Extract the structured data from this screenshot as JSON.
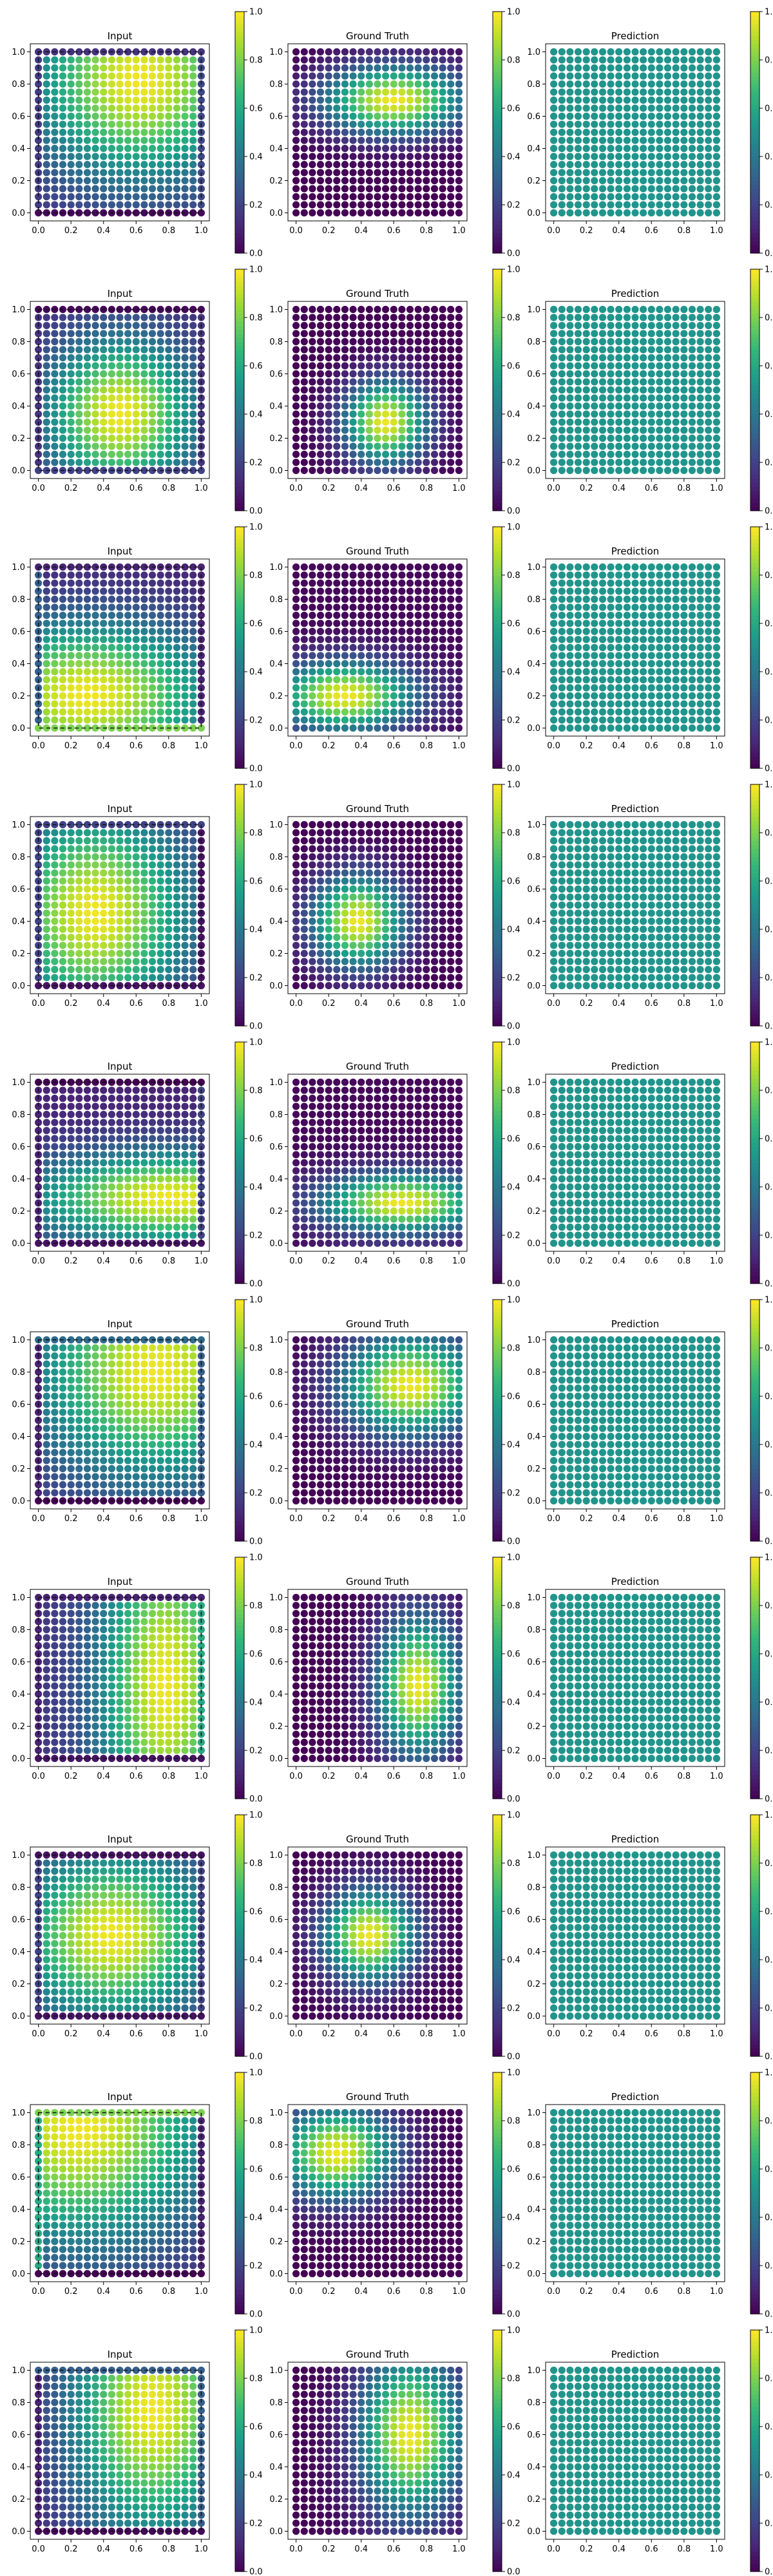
{
  "figure": {
    "panel_titles": [
      "Input",
      "Ground Truth",
      "Prediction"
    ]
  },
  "chart_data": [
    {
      "type": "heatmap",
      "row": 1,
      "panels": [
        {
          "title": "Input",
          "field": {
            "kind": "gauss",
            "cx": 0.62,
            "cy": 0.82,
            "sx": 0.45,
            "sy": 0.42,
            "lo": 0.12,
            "hi": 0.98,
            "edge": {
              "bottom": 0.02,
              "top": 0.15,
              "left": 0.18,
              "right": 0.22
            }
          }
        },
        {
          "title": "Ground Truth",
          "field": {
            "kind": "gauss",
            "cx": 0.6,
            "cy": 0.7,
            "sx": 0.3,
            "sy": 0.15,
            "lo": 0.0,
            "hi": 0.98
          }
        },
        {
          "title": "Prediction",
          "field": {
            "kind": "const",
            "value": 0.52
          }
        }
      ]
    },
    {
      "type": "heatmap",
      "row": 2,
      "panels": [
        {
          "title": "Input",
          "field": {
            "kind": "gauss",
            "cx": 0.5,
            "cy": 0.35,
            "sx": 0.32,
            "sy": 0.33,
            "lo": 0.1,
            "hi": 0.98,
            "edge": {
              "bottom": 0.2,
              "top": 0.02,
              "left": 0.15,
              "right": 0.15
            }
          }
        },
        {
          "title": "Ground Truth",
          "field": {
            "kind": "gauss",
            "cx": 0.55,
            "cy": 0.3,
            "sx": 0.18,
            "sy": 0.18,
            "lo": 0.0,
            "hi": 0.98
          }
        },
        {
          "title": "Prediction",
          "field": {
            "kind": "const",
            "value": 0.52
          }
        }
      ]
    },
    {
      "type": "heatmap",
      "row": 3,
      "panels": [
        {
          "title": "Input",
          "field": {
            "kind": "gauss",
            "cx": 0.3,
            "cy": 0.2,
            "sx": 0.55,
            "sy": 0.33,
            "lo": 0.08,
            "hi": 0.98,
            "edge": {
              "bottom": 0.8,
              "top": 0.1,
              "left": 0.3,
              "right": 0.1
            }
          }
        },
        {
          "title": "Ground Truth",
          "field": {
            "kind": "gauss",
            "cx": 0.3,
            "cy": 0.2,
            "sx": 0.3,
            "sy": 0.15,
            "lo": 0.02,
            "hi": 0.98
          }
        },
        {
          "title": "Prediction",
          "field": {
            "kind": "const",
            "value": 0.52
          }
        }
      ]
    },
    {
      "type": "heatmap",
      "row": 4,
      "panels": [
        {
          "title": "Input",
          "field": {
            "kind": "gauss",
            "cx": 0.35,
            "cy": 0.45,
            "sx": 0.4,
            "sy": 0.45,
            "lo": 0.1,
            "hi": 0.98,
            "edge": {
              "bottom": 0.05,
              "top": 0.2,
              "left": 0.2,
              "right": 0.05
            }
          }
        },
        {
          "title": "Ground Truth",
          "field": {
            "kind": "gauss",
            "cx": 0.38,
            "cy": 0.4,
            "sx": 0.2,
            "sy": 0.2,
            "lo": 0.0,
            "hi": 0.98
          }
        },
        {
          "title": "Prediction",
          "field": {
            "kind": "const",
            "value": 0.52
          }
        }
      ]
    },
    {
      "type": "heatmap",
      "row": 5,
      "panels": [
        {
          "title": "Input",
          "field": {
            "kind": "gauss",
            "cx": 0.8,
            "cy": 0.28,
            "sx": 0.6,
            "sy": 0.2,
            "lo": 0.1,
            "hi": 0.98,
            "edge": {
              "bottom": 0.05,
              "top": 0.0,
              "left": 0.1,
              "right": 0.2
            }
          }
        },
        {
          "title": "Ground Truth",
          "field": {
            "kind": "gauss",
            "cx": 0.65,
            "cy": 0.25,
            "sx": 0.35,
            "sy": 0.13,
            "lo": 0.02,
            "hi": 0.98
          }
        },
        {
          "title": "Prediction",
          "field": {
            "kind": "const",
            "value": 0.52
          }
        }
      ]
    },
    {
      "type": "heatmap",
      "row": 6,
      "panels": [
        {
          "title": "Input",
          "field": {
            "kind": "gauss",
            "cx": 0.72,
            "cy": 0.8,
            "sx": 0.5,
            "sy": 0.45,
            "lo": 0.12,
            "hi": 0.98,
            "edge": {
              "bottom": 0.0,
              "top": 0.35,
              "left": 0.1,
              "right": 0.3
            }
          }
        },
        {
          "title": "Ground Truth",
          "field": {
            "kind": "gauss",
            "cx": 0.7,
            "cy": 0.72,
            "sx": 0.3,
            "sy": 0.22,
            "lo": 0.0,
            "hi": 0.98
          }
        },
        {
          "title": "Prediction",
          "field": {
            "kind": "const",
            "value": 0.52
          }
        }
      ]
    },
    {
      "type": "heatmap",
      "row": 7,
      "panels": [
        {
          "title": "Input",
          "field": {
            "kind": "gauss",
            "cx": 0.78,
            "cy": 0.45,
            "sx": 0.28,
            "sy": 0.7,
            "lo": 0.15,
            "hi": 0.98,
            "edge": {
              "bottom": 0.05,
              "top": 0.1,
              "left": 0.1,
              "right": 0.6
            }
          }
        },
        {
          "title": "Ground Truth",
          "field": {
            "kind": "gauss",
            "cx": 0.75,
            "cy": 0.45,
            "sx": 0.18,
            "sy": 0.3,
            "lo": 0.0,
            "hi": 0.98
          }
        },
        {
          "title": "Prediction",
          "field": {
            "kind": "const",
            "value": 0.52
          }
        }
      ]
    },
    {
      "type": "heatmap",
      "row": 8,
      "panels": [
        {
          "title": "Input",
          "field": {
            "kind": "gauss",
            "cx": 0.45,
            "cy": 0.5,
            "sx": 0.4,
            "sy": 0.35,
            "lo": 0.15,
            "hi": 0.98,
            "edge": {
              "bottom": 0.05,
              "top": 0.05,
              "left": 0.2,
              "right": 0.2
            }
          }
        },
        {
          "title": "Ground Truth",
          "field": {
            "kind": "gauss",
            "cx": 0.45,
            "cy": 0.5,
            "sx": 0.2,
            "sy": 0.2,
            "lo": 0.0,
            "hi": 0.98
          }
        },
        {
          "title": "Prediction",
          "field": {
            "kind": "const",
            "value": 0.52
          }
        }
      ]
    },
    {
      "type": "heatmap",
      "row": 9,
      "panels": [
        {
          "title": "Input",
          "field": {
            "kind": "gauss",
            "cx": 0.25,
            "cy": 0.9,
            "sx": 0.55,
            "sy": 0.5,
            "lo": 0.1,
            "hi": 0.98,
            "edge": {
              "bottom": 0.0,
              "top": 0.8,
              "left": 0.6,
              "right": 0.1
            }
          }
        },
        {
          "title": "Ground Truth",
          "field": {
            "kind": "gauss",
            "cx": 0.25,
            "cy": 0.75,
            "sx": 0.25,
            "sy": 0.2,
            "lo": 0.0,
            "hi": 0.98
          }
        },
        {
          "title": "Prediction",
          "field": {
            "kind": "const",
            "value": 0.52
          }
        }
      ]
    },
    {
      "type": "heatmap",
      "row": 10,
      "panels": [
        {
          "title": "Input",
          "field": {
            "kind": "gauss",
            "cx": 0.7,
            "cy": 0.75,
            "sx": 0.35,
            "sy": 0.55,
            "lo": 0.1,
            "hi": 0.98,
            "edge": {
              "bottom": 0.02,
              "top": 0.3,
              "left": 0.1,
              "right": 0.3
            }
          }
        },
        {
          "title": "Ground Truth",
          "field": {
            "kind": "gauss",
            "cx": 0.7,
            "cy": 0.6,
            "sx": 0.22,
            "sy": 0.35,
            "lo": 0.0,
            "hi": 0.98
          }
        },
        {
          "title": "Prediction",
          "field": {
            "kind": "const",
            "value": 0.52
          }
        }
      ]
    }
  ],
  "axes": {
    "xlim": [
      -0.05,
      1.05
    ],
    "ylim": [
      -0.05,
      1.05
    ],
    "xticks": [
      "0.0",
      "0.2",
      "0.4",
      "0.6",
      "0.8",
      "1.0"
    ],
    "yticks": [
      "0.0",
      "0.2",
      "0.4",
      "0.6",
      "0.8",
      "1.0"
    ],
    "grid": false,
    "marker": "circle",
    "grid_points_per_side": 21
  },
  "colorbar": {
    "colormap": "viridis",
    "range": [
      0.0,
      1.0
    ],
    "ticks": [
      "0.0",
      "0.2",
      "0.4",
      "0.6",
      "0.8",
      "1.0"
    ]
  },
  "colors": {
    "dashed_edge": "#111111",
    "viridis_stops": [
      "#440154",
      "#482878",
      "#3e4989",
      "#31688e",
      "#26828e",
      "#1f9e89",
      "#35b779",
      "#6ece58",
      "#b5de2b",
      "#fde725"
    ]
  }
}
